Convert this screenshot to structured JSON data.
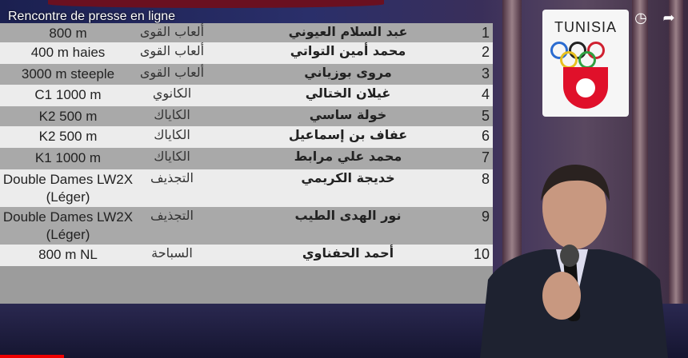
{
  "video_title": "Rencontre de presse en ligne",
  "logo": {
    "text": "TUNISIA"
  },
  "rows": [
    {
      "num": "1",
      "name": "عبد السلام العيوني",
      "sport": "ألعاب القوى",
      "event": "800 m"
    },
    {
      "num": "2",
      "name": "محمد أمين التواتي",
      "sport": "ألعاب القوى",
      "event": "400 m haies"
    },
    {
      "num": "3",
      "name": "مروى بوزياني",
      "sport": "ألعاب القوى",
      "event": "3000 m steeple"
    },
    {
      "num": "4",
      "name": "غيلان الختالي",
      "sport": "الكانوي",
      "event": "C1 1000 m"
    },
    {
      "num": "5",
      "name": "خولة ساسي",
      "sport": "الكاياك",
      "event": "K2 500 m"
    },
    {
      "num": "6",
      "name": "عفاف بن إسماعيل",
      "sport": "الكاياك",
      "event": "K2 500 m"
    },
    {
      "num": "7",
      "name": "محمد علي مرابط",
      "sport": "الكاياك",
      "event": "K1 1000 m"
    },
    {
      "num": "8",
      "name": "خديجة الكريمي",
      "sport": "التجذيف",
      "event": "Double Dames LW2X (Léger)"
    },
    {
      "num": "9",
      "name": "نور الهدى الطيب",
      "sport": "التجذيف",
      "event": "Double Dames LW2X (Léger)"
    },
    {
      "num": "10",
      "name": "أحمد الحفناوي",
      "sport": "السباحة",
      "event": "800 m NL"
    }
  ],
  "icons": {
    "watch_later": "clock-icon",
    "share": "share-icon"
  },
  "colors": {
    "progress": "#ee0000",
    "flag": "#e0102a"
  }
}
